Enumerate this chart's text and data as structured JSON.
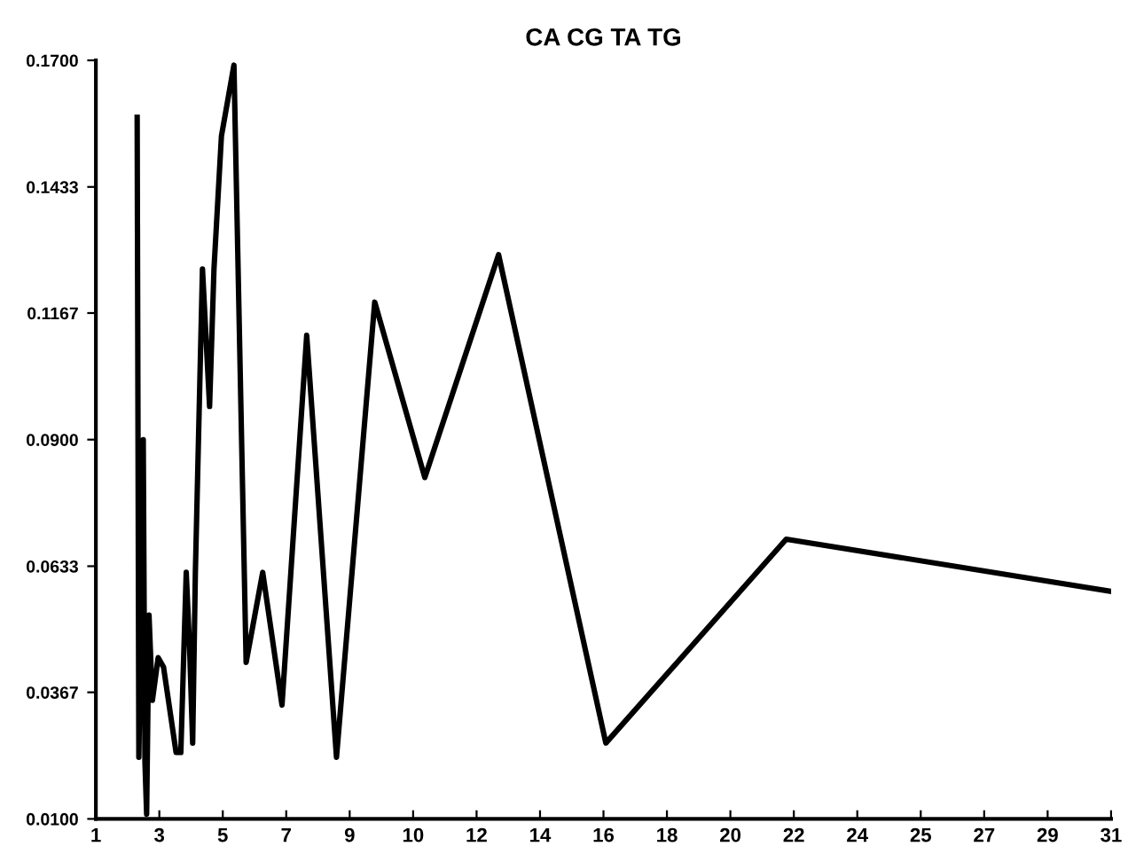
{
  "chart_data": {
    "type": "line",
    "title": "CA CG TA TG",
    "x": [
      2.22,
      2.27,
      2.4,
      2.45,
      2.5,
      2.57,
      2.67,
      2.84,
      3.0,
      3.37,
      3.51,
      3.67,
      3.77,
      3.86,
      3.94,
      4.15,
      4.36,
      4.49,
      4.71,
      5.08,
      5.44,
      5.93,
      6.5,
      7.23,
      8.11,
      9.24,
      10.72,
      12.9,
      16.07,
      21.4,
      31.0
    ],
    "series": [
      {
        "color": "#000000",
        "values": [
          0.158,
          0.023,
          0.09,
          0.022,
          0.011,
          0.053,
          0.035,
          0.044,
          0.042,
          0.024,
          0.024,
          0.062,
          0.046,
          0.026,
          0.062,
          0.126,
          0.097,
          0.126,
          0.154,
          0.169,
          0.043,
          0.062,
          0.034,
          0.112,
          0.023,
          0.119,
          0.082,
          0.129,
          0.026,
          0.069,
          0.058
        ]
      }
    ],
    "xlim": [
      1,
      31
    ],
    "xticks": [
      1,
      {
        "value": 2.875,
        "label": "3"
      },
      {
        "value": 4.75,
        "label": "5"
      },
      {
        "value": 6.625,
        "label": "7"
      },
      {
        "value": 8.5,
        "label": "9"
      },
      {
        "value": 10.375,
        "label": "10"
      },
      {
        "value": 12.25,
        "label": "12"
      },
      {
        "value": 14.125,
        "label": "14"
      },
      16,
      {
        "value": 17.875,
        "label": "18"
      },
      {
        "value": 19.75,
        "label": "20"
      },
      {
        "value": 21.625,
        "label": "22"
      },
      {
        "value": 23.5,
        "label": "24"
      },
      {
        "value": 25.375,
        "label": "25"
      },
      {
        "value": 27.25,
        "label": "27"
      },
      {
        "value": 29.125,
        "label": "29"
      },
      31
    ],
    "ylim": [
      0.01,
      0.17
    ],
    "yticks": [
      {
        "value": 0.01,
        "label": "0.0100"
      },
      {
        "value": 0.0367,
        "label": "0.0367"
      },
      {
        "value": 0.0633,
        "label": "0.0633"
      },
      {
        "value": 0.09,
        "label": "0.0900"
      },
      {
        "value": 0.1167,
        "label": "0.1167"
      },
      {
        "value": 0.1433,
        "label": "0.1433"
      },
      {
        "value": 0.17,
        "label": "0.1700"
      }
    ],
    "grid": false,
    "line_style": "solid"
  }
}
